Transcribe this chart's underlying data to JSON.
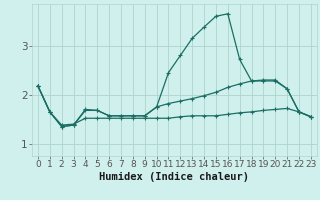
{
  "xlabel": "Humidex (Indice chaleur)",
  "background_color": "#cff0ec",
  "grid_color": "#aed4ce",
  "line_color": "#1a6e64",
  "x_values": [
    0,
    1,
    2,
    3,
    4,
    5,
    6,
    7,
    8,
    9,
    10,
    11,
    12,
    13,
    14,
    15,
    16,
    17,
    18,
    19,
    20,
    21,
    22,
    23
  ],
  "series": [
    [
      2.18,
      1.65,
      1.35,
      1.38,
      1.68,
      1.68,
      1.57,
      1.57,
      1.57,
      1.57,
      1.75,
      1.82,
      1.87,
      1.92,
      1.98,
      2.05,
      2.15,
      2.22,
      2.28,
      2.3,
      2.3,
      2.12,
      1.65,
      1.55
    ],
    [
      2.18,
      1.65,
      1.35,
      1.38,
      1.7,
      1.68,
      1.57,
      1.57,
      1.57,
      1.57,
      1.75,
      2.45,
      2.8,
      3.15,
      3.38,
      3.6,
      3.65,
      2.72,
      2.28,
      2.28,
      2.28,
      2.12,
      1.65,
      1.55
    ],
    [
      2.18,
      1.65,
      1.38,
      1.4,
      1.52,
      1.52,
      1.52,
      1.52,
      1.52,
      1.52,
      1.52,
      1.52,
      1.55,
      1.57,
      1.57,
      1.57,
      1.6,
      1.63,
      1.65,
      1.68,
      1.7,
      1.72,
      1.65,
      1.55
    ]
  ],
  "ylim": [
    0.75,
    3.85
  ],
  "xlim": [
    -0.5,
    23.5
  ],
  "yticks": [
    1,
    2,
    3
  ],
  "xticks": [
    0,
    1,
    2,
    3,
    4,
    5,
    6,
    7,
    8,
    9,
    10,
    11,
    12,
    13,
    14,
    15,
    16,
    17,
    18,
    19,
    20,
    21,
    22,
    23
  ],
  "tick_fontsize": 6.5,
  "xlabel_fontsize": 7.5,
  "marker_size": 2.8,
  "line_width": 0.9
}
